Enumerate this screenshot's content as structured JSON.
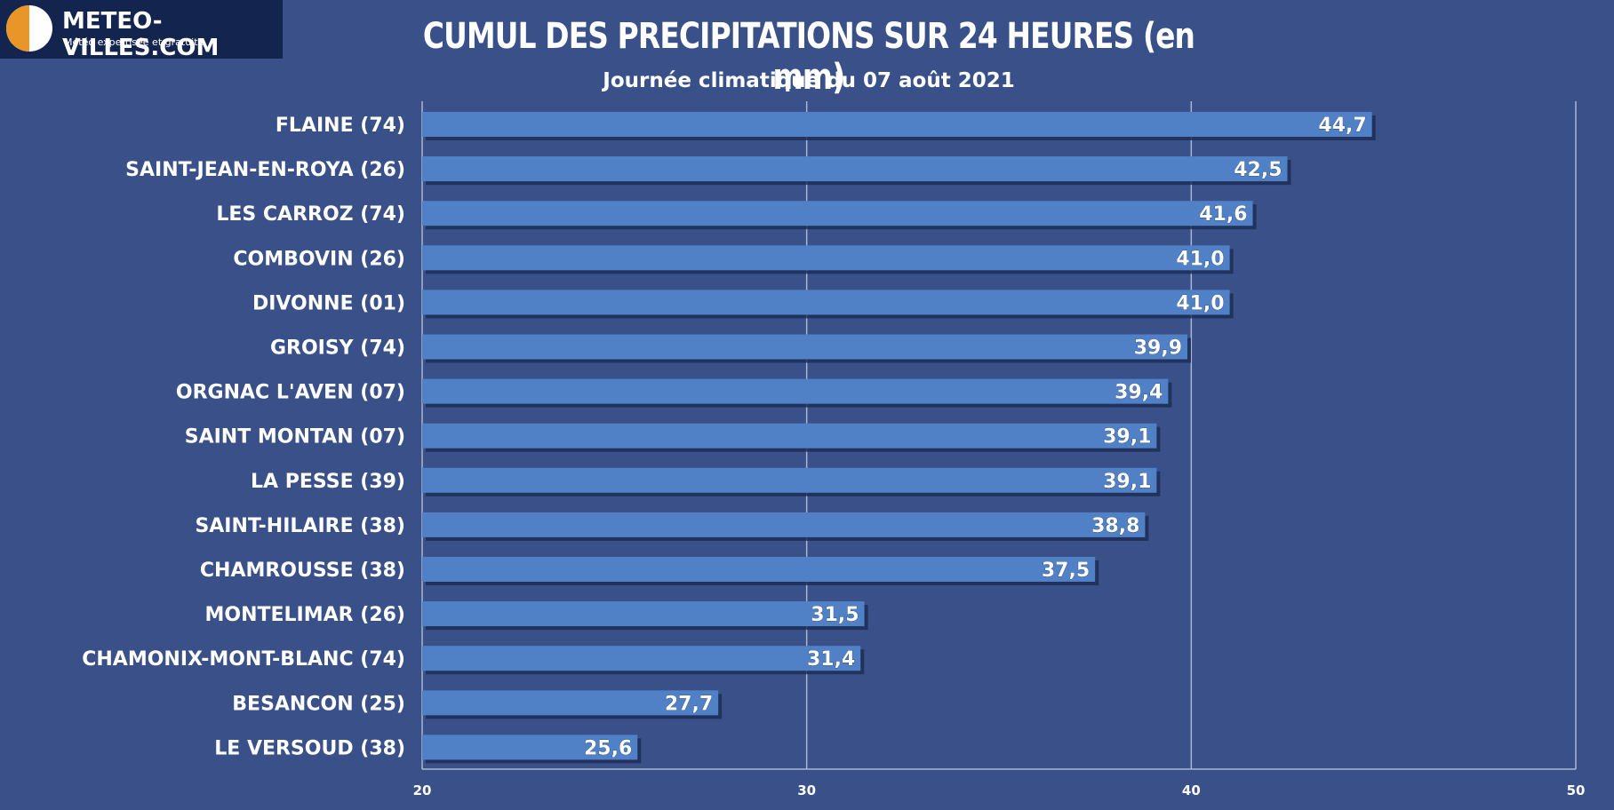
{
  "logo": {
    "name": "METEO-VILLES.COM",
    "tagline": "Météo expertisée et gratuite"
  },
  "header": {
    "title": "CUMUL DES PRECIPITATIONS SUR 24 HEURES  (en mm)",
    "subtitle": "Journée climatique du 07 août 2021"
  },
  "colors": {
    "background": "#3a5089",
    "bar": "#5081c6",
    "bar_shadow": "#1c2a52",
    "grid": "#a9b6d3",
    "logo_bg": "#13254f",
    "logo_orange": "#e8962a"
  },
  "chart_data": {
    "type": "bar",
    "orientation": "horizontal",
    "title": "CUMUL DES PRECIPITATIONS SUR 24 HEURES  (en mm)",
    "subtitle": "Journée climatique du 07 août 2021",
    "categories": [
      "FLAINE (74)",
      "SAINT-JEAN-EN-ROYA (26)",
      "LES CARROZ (74)",
      "COMBOVIN (26)",
      "DIVONNE (01)",
      "GROISY (74)",
      "ORGNAC L'AVEN (07)",
      "SAINT MONTAN (07)",
      "LA PESSE (39)",
      "SAINT-HILAIRE (38)",
      "CHAMROUSSE (38)",
      "MONTELIMAR (26)",
      "CHAMONIX-MONT-BLANC (74)",
      "BESANCON (25)",
      "LE VERSOUD (38)"
    ],
    "values": [
      44.7,
      42.5,
      41.6,
      41.0,
      41.0,
      39.9,
      39.4,
      39.1,
      39.1,
      38.8,
      37.5,
      31.5,
      31.4,
      27.7,
      25.6
    ],
    "value_labels": [
      "44,7",
      "42,5",
      "41,6",
      "41,0",
      "41,0",
      "39,9",
      "39,4",
      "39,1",
      "39,1",
      "38,8",
      "37,5",
      "31,5",
      "31,4",
      "27,7",
      "25,6"
    ],
    "xlim": [
      20,
      50
    ],
    "xticks": [
      20,
      30,
      40,
      50
    ],
    "xtick_labels": [
      "20",
      "30",
      "40",
      "50"
    ],
    "grid": true
  }
}
